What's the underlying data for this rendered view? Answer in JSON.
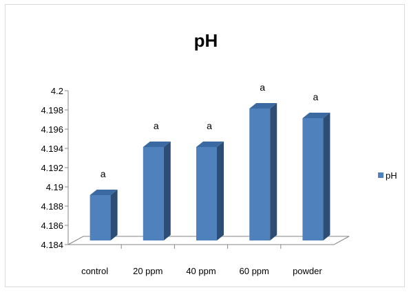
{
  "chart_data": {
    "type": "bar",
    "title": "pH",
    "categories": [
      "control",
      "20 ppm",
      "40 ppm",
      "60 ppm",
      "powder"
    ],
    "series": [
      {
        "name": "pH",
        "values": [
          4.19,
          4.195,
          4.195,
          4.199,
          4.198
        ],
        "color": "#4f81bd"
      }
    ],
    "data_labels": [
      "a",
      "a",
      "a",
      "a",
      "a"
    ],
    "yticks": [
      "4.184",
      "4.186",
      "4.188",
      "4.19",
      "4.192",
      "4.194",
      "4.196",
      "4.198",
      "4.2"
    ],
    "ylim": [
      4.184,
      4.2
    ],
    "xlabel": "",
    "ylabel": "",
    "grid": false,
    "legend_position": "right",
    "style": "3d-column"
  }
}
